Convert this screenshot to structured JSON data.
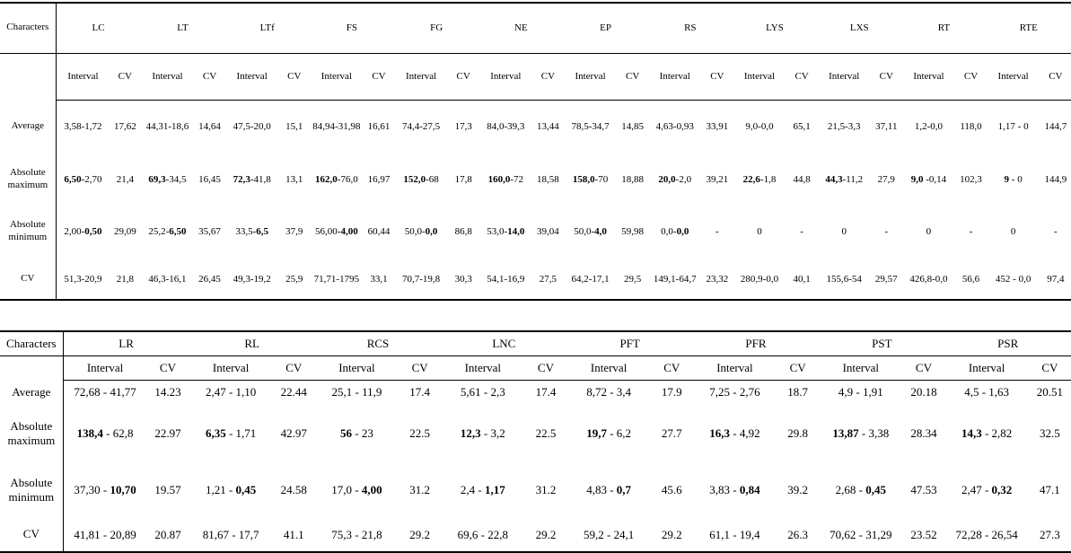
{
  "table1": {
    "corner_label": "Characters",
    "sub_interval": "Interval",
    "sub_cv": "CV",
    "groups": [
      "LC",
      "LT",
      "LTf",
      "FS",
      "FG",
      "NE",
      "EP",
      "RS",
      "LYS",
      "LXS",
      "RT",
      "RTE"
    ],
    "rows": [
      {
        "label": "Average",
        "cells": [
          {
            "l": "3,58",
            "s": "-",
            "r": "1,72",
            "b": "n",
            "cv": "17,62"
          },
          {
            "l": "44,31",
            "s": "-",
            "r": "18,6",
            "b": "n",
            "cv": "14,64"
          },
          {
            "l": "47,5",
            "s": "-",
            "r": "20,0",
            "b": "n",
            "cv": "15,1"
          },
          {
            "l": "84,94",
            "s": "-",
            "r": "31,98",
            "b": "n",
            "cv": "16,61"
          },
          {
            "l": "74,4",
            "s": "-",
            "r": "27,5",
            "b": "n",
            "cv": "17,3"
          },
          {
            "l": "84,0",
            "s": "-",
            "r": "39,3",
            "b": "n",
            "cv": "13,44"
          },
          {
            "l": "78,5",
            "s": "-",
            "r": "34,7",
            "b": "n",
            "cv": "14,85"
          },
          {
            "l": "4,63",
            "s": "-",
            "r": "0,93",
            "b": "n",
            "cv": "33,91"
          },
          {
            "l": "9,0",
            "s": "-",
            "r": "0,0",
            "b": "n",
            "cv": "65,1"
          },
          {
            "l": "21,5",
            "s": "-",
            "r": "3,3",
            "b": "n",
            "cv": "37,11"
          },
          {
            "l": "1,2",
            "s": "-",
            "r": "0,0",
            "b": "n",
            "cv": "118,0"
          },
          {
            "l": "1,17",
            "s": " - ",
            "r": "0",
            "b": "n",
            "cv": "144,7"
          }
        ]
      },
      {
        "label": "Absolute maximum",
        "cells": [
          {
            "l": "6,50",
            "s": "-",
            "r": "2,70",
            "b": "l",
            "cv": "21,4"
          },
          {
            "l": "69,3",
            "s": "-",
            "r": "34,5",
            "b": "l",
            "cv": "16,45"
          },
          {
            "l": "72,3",
            "s": "-",
            "r": "41,8",
            "b": "l",
            "cv": "13,1"
          },
          {
            "l": "162,0",
            "s": "-",
            "r": "76,0",
            "b": "l",
            "cv": "16,97"
          },
          {
            "l": "152,0",
            "s": "-",
            "r": "68",
            "b": "l",
            "cv": "17,8"
          },
          {
            "l": "160,0",
            "s": "-",
            "r": "72",
            "b": "l",
            "cv": "18,58"
          },
          {
            "l": "158,0",
            "s": "-",
            "r": "70",
            "b": "l",
            "cv": "18,88"
          },
          {
            "l": "20,0",
            "s": "-",
            "r": "2,0",
            "b": "l",
            "cv": "39,21"
          },
          {
            "l": "22,6",
            "s": "-",
            "r": "1,8",
            "b": "l",
            "cv": "44,8"
          },
          {
            "l": "44,3",
            "s": "-",
            "r": "11,2",
            "b": "l",
            "cv": "27,9"
          },
          {
            "l": "9,0",
            "s": " -",
            "r": "0,14",
            "b": "l",
            "cv": "102,3"
          },
          {
            "l": "9",
            "s": " - ",
            "r": "0",
            "b": "l",
            "cv": "144,9"
          }
        ]
      },
      {
        "label": "Absolute minimum",
        "cells": [
          {
            "l": "2,00",
            "s": "-",
            "r": "0,50",
            "b": "r",
            "cv": "29,09"
          },
          {
            "l": "25,2",
            "s": "-",
            "r": "6,50",
            "b": "r",
            "cv": "35,67"
          },
          {
            "l": "33,5",
            "s": "-",
            "r": "6,5",
            "b": "r",
            "cv": "37,9"
          },
          {
            "l": "56,00",
            "s": "-",
            "r": "4,00",
            "b": "r",
            "cv": "60,44"
          },
          {
            "l": "50,0",
            "s": "-",
            "r": "0,0",
            "b": "r",
            "cv": "86,8"
          },
          {
            "l": "53,0",
            "s": "-",
            "r": "14,0",
            "b": "r",
            "cv": "39,04"
          },
          {
            "l": "50,0",
            "s": "-",
            "r": "4,0",
            "b": "r",
            "cv": "59,98"
          },
          {
            "l": "0,0",
            "s": "-",
            "r": "0,0",
            "b": "r",
            "cv": "-"
          },
          {
            "l": "0",
            "s": "",
            "r": "",
            "b": "n",
            "cv": "-"
          },
          {
            "l": "0",
            "s": "",
            "r": "",
            "b": "n",
            "cv": "-"
          },
          {
            "l": "0",
            "s": "",
            "r": "",
            "b": "n",
            "cv": "-"
          },
          {
            "l": "0",
            "s": "",
            "r": "",
            "b": "n",
            "cv": "-"
          }
        ]
      },
      {
        "label": "CV",
        "cells": [
          {
            "l": "51,3",
            "s": "-",
            "r": "20,9",
            "b": "n",
            "cv": "21,8"
          },
          {
            "l": "46,3",
            "s": "-",
            "r": "16,1",
            "b": "n",
            "cv": "26,45"
          },
          {
            "l": "49,3",
            "s": "-",
            "r": "19,2",
            "b": "n",
            "cv": "25,9"
          },
          {
            "l": "71,71",
            "s": "-",
            "r": "1795",
            "b": "n",
            "cv": "33,1"
          },
          {
            "l": "70,7",
            "s": "-",
            "r": "19,8",
            "b": "n",
            "cv": "30,3"
          },
          {
            "l": "54,1",
            "s": "-",
            "r": "16,9",
            "b": "n",
            "cv": "27,5"
          },
          {
            "l": "64,2",
            "s": "-",
            "r": "17,1",
            "b": "n",
            "cv": "29,5"
          },
          {
            "l": "149,1",
            "s": "-",
            "r": "64,7",
            "b": "n",
            "cv": "23,32"
          },
          {
            "l": "280,9",
            "s": "-",
            "r": "0,0",
            "b": "n",
            "cv": "40,1"
          },
          {
            "l": "155,6",
            "s": "-",
            "r": "54",
            "b": "n",
            "cv": "29,57"
          },
          {
            "l": "426,8",
            "s": "-",
            "r": "0,0",
            "b": "n",
            "cv": "56,6"
          },
          {
            "l": "452",
            "s": " - ",
            "r": "0,0",
            "b": "n",
            "cv": "97,4"
          }
        ]
      }
    ]
  },
  "table2": {
    "corner_label": "Characters",
    "sub_interval": "Interval",
    "sub_cv": "CV",
    "groups": [
      "LR",
      "RL",
      "RCS",
      "LNC",
      "PFT",
      "PFR",
      "PST",
      "PSR"
    ],
    "rows": [
      {
        "label": "Average",
        "cells": [
          {
            "l": "72,68",
            "s": " - ",
            "r": "41,77",
            "b": "n",
            "cv": "14.23"
          },
          {
            "l": "2,47",
            "s": " - ",
            "r": "1,10",
            "b": "n",
            "cv": "22.44"
          },
          {
            "l": "25,1",
            "s": " - ",
            "r": "11,9",
            "b": "n",
            "cv": "17.4"
          },
          {
            "l": "5,61",
            "s": " - ",
            "r": "2,3",
            "b": "n",
            "cv": "17.4"
          },
          {
            "l": "8,72",
            "s": " - ",
            "r": "3,4",
            "b": "n",
            "cv": "17.9"
          },
          {
            "l": "7,25",
            "s": " - ",
            "r": "2,76",
            "b": "n",
            "cv": "18.7"
          },
          {
            "l": "4,9",
            "s": " - ",
            "r": "1,91",
            "b": "n",
            "cv": "20.18"
          },
          {
            "l": "4,5",
            "s": " - ",
            "r": "1,63",
            "b": "n",
            "cv": "20.51"
          }
        ]
      },
      {
        "label": "Absolute maximum",
        "cells": [
          {
            "l": "138,4",
            "s": " - ",
            "r": "62,8",
            "b": "l",
            "cv": "22.97"
          },
          {
            "l": "6,35",
            "s": " - ",
            "r": "1,71",
            "b": "l",
            "cv": "42.97"
          },
          {
            "l": "56",
            "s": " - ",
            "r": "23",
            "b": "l",
            "cv": "22.5"
          },
          {
            "l": "12,3",
            "s": " - ",
            "r": "3,2",
            "b": "l",
            "cv": "22.5"
          },
          {
            "l": "19,7",
            "s": " - ",
            "r": "6,2",
            "b": "l",
            "cv": "27.7"
          },
          {
            "l": "16,3",
            "s": " - ",
            "r": "4,92",
            "b": "l",
            "cv": "29.8"
          },
          {
            "l": "13,87",
            "s": " - ",
            "r": "3,38",
            "b": "l",
            "cv": "28.34"
          },
          {
            "l": "14,3",
            "s": " - ",
            "r": "2,82",
            "b": "l",
            "cv": "32.5"
          }
        ]
      },
      {
        "label": "Absolute minimum",
        "cells": [
          {
            "l": "37,30",
            "s": " - ",
            "r": "10,70",
            "b": "r",
            "cv": "19.57"
          },
          {
            "l": "1,21",
            "s": " - ",
            "r": "0,45",
            "b": "r",
            "cv": "24.58"
          },
          {
            "l": "17,0",
            "s": " - ",
            "r": "4,00",
            "b": "r",
            "cv": "31.2"
          },
          {
            "l": "2,4",
            "s": " - ",
            "r": "1,17",
            "b": "r",
            "cv": "31.2"
          },
          {
            "l": "4,83",
            "s": " - ",
            "r": "0,7",
            "b": "r",
            "cv": "45.6"
          },
          {
            "l": "3,83",
            "s": " - ",
            "r": "0,84",
            "b": "r",
            "cv": "39.2"
          },
          {
            "l": "2,68",
            "s": " - ",
            "r": "0,45",
            "b": "r",
            "cv": "47.53"
          },
          {
            "l": "2,47",
            "s": " - ",
            "r": "0,32",
            "b": "r",
            "cv": "47.1"
          }
        ]
      },
      {
        "label": "CV",
        "cells": [
          {
            "l": "41,81",
            "s": " - ",
            "r": "20,89",
            "b": "n",
            "cv": "20.87"
          },
          {
            "l": "81,67",
            "s": " - ",
            "r": "17,7",
            "b": "n",
            "cv": "41.1"
          },
          {
            "l": "75,3",
            "s": " - ",
            "r": "21,8",
            "b": "n",
            "cv": "29.2"
          },
          {
            "l": "69,6",
            "s": " - ",
            "r": "22,8",
            "b": "n",
            "cv": "29.2"
          },
          {
            "l": "59,2",
            "s": " - ",
            "r": "24,1",
            "b": "n",
            "cv": "29.2"
          },
          {
            "l": "61,1",
            "s": " - ",
            "r": "19,4",
            "b": "n",
            "cv": "26.3"
          },
          {
            "l": "70,62",
            "s": " - ",
            "r": "31,29",
            "b": "n",
            "cv": "23.52"
          },
          {
            "l": "72,28",
            "s": " - ",
            "r": "26,54",
            "b": "n",
            "cv": "27.3"
          }
        ]
      }
    ]
  }
}
